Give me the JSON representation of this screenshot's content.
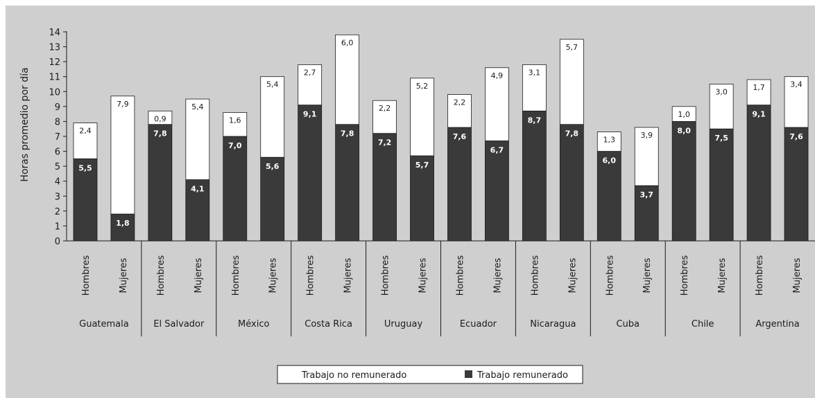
{
  "chart_data": {
    "type": "bar",
    "stacked": true,
    "ylabel": "Horas promedio por día",
    "ylim": [
      0,
      14
    ],
    "yticks": [
      0,
      1,
      2,
      3,
      4,
      5,
      6,
      7,
      8,
      9,
      10,
      11,
      12,
      13,
      14
    ],
    "countries": [
      "Guatemala",
      "El Salvador",
      "México",
      "Costa Rica",
      "Uruguay",
      "Ecuador",
      "Nicaragua",
      "Cuba",
      "Chile",
      "Argentina"
    ],
    "genders": [
      "Hombres",
      "Mujeres"
    ],
    "categories": [
      "Guatemala Hombres",
      "Guatemala Mujeres",
      "El Salvador Hombres",
      "El Salvador Mujeres",
      "México Hombres",
      "México Mujeres",
      "Costa Rica Hombres",
      "Costa Rica Mujeres",
      "Uruguay Hombres",
      "Uruguay Mujeres",
      "Ecuador Hombres",
      "Ecuador Mujeres",
      "Nicaragua Hombres",
      "Nicaragua Mujeres",
      "Cuba Hombres",
      "Cuba Mujeres",
      "Chile Hombres",
      "Chile Mujeres",
      "Argentina Hombres",
      "Argentina Mujeres"
    ],
    "series": [
      {
        "name": "Trabajo remunerado",
        "color": "#3a3a3a",
        "values": [
          5.5,
          1.8,
          7.8,
          4.1,
          7.0,
          5.6,
          9.1,
          7.8,
          7.2,
          5.7,
          7.6,
          6.7,
          8.7,
          7.8,
          6.0,
          3.7,
          8.0,
          7.5,
          9.1,
          7.6
        ],
        "labels": [
          "5,5",
          "1,8",
          "7,8",
          "4,1",
          "7,0",
          "5,6",
          "9,1",
          "7,8",
          "7,2",
          "5,7",
          "7,6",
          "6,7",
          "8,7",
          "7,8",
          "6,0",
          "3,7",
          "8,0",
          "7,5",
          "9,1",
          "7,6"
        ]
      },
      {
        "name": "Trabajo no remunerado",
        "color": "#ffffff",
        "values": [
          2.4,
          7.9,
          0.9,
          5.4,
          1.6,
          5.4,
          2.7,
          6.0,
          2.2,
          5.2,
          2.2,
          4.9,
          3.1,
          5.7,
          1.3,
          3.9,
          1.0,
          3.0,
          1.7,
          3.4
        ],
        "labels": [
          "2,4",
          "7,9",
          "0,9",
          "5,4",
          "1,6",
          "5,4",
          "2,7",
          "6,0",
          "2,2",
          "5,2",
          "2,2",
          "4,9",
          "3,1",
          "5,7",
          "1,3",
          "3,9",
          "1,0",
          "3,0",
          "1,7",
          "3,4"
        ]
      }
    ],
    "legend": {
      "position": "bottom",
      "entries": [
        "Trabajo no remunerado",
        "Trabajo remunerado"
      ]
    },
    "grid": false
  }
}
